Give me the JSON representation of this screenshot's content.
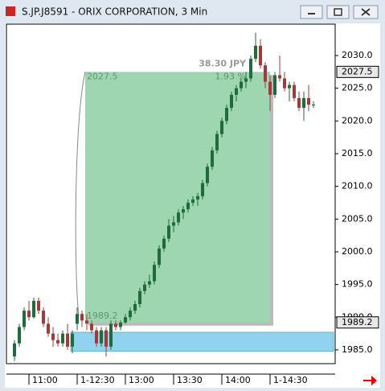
{
  "window": {
    "title": "S.JP.J8591 - ORIX CORPORATION, 3 Min"
  },
  "chart_data": {
    "type": "candlestick",
    "ohlc": [
      [
        1984,
        1986.5,
        1983.3,
        1986
      ],
      [
        1986,
        1989,
        1985.5,
        1988.5
      ],
      [
        1988.5,
        1991.5,
        1988,
        1991
      ],
      [
        1991,
        1992.5,
        1989.5,
        1990
      ],
      [
        1990,
        1993,
        1989.8,
        1992.5
      ],
      [
        1992.5,
        1993,
        1990.5,
        1991
      ],
      [
        1991,
        1991.5,
        1988.5,
        1989
      ],
      [
        1989,
        1990,
        1987,
        1987.5
      ],
      [
        1987.5,
        1988.5,
        1985.5,
        1986.5
      ],
      [
        1986.5,
        1987.5,
        1985.5,
        1986
      ],
      [
        1986,
        1988,
        1985.5,
        1987.5
      ],
      [
        1987.5,
        1989,
        1985,
        1985.5
      ],
      [
        1985.5,
        1988,
        1984.5,
        1987.5
      ],
      [
        1989,
        1991.5,
        1988,
        1990.5
      ],
      [
        1990.5,
        1991,
        1988.5,
        1989.5
      ],
      [
        1989.5,
        1990.5,
        1988,
        1989
      ],
      [
        1989,
        1989.5,
        1987.5,
        1988
      ],
      [
        1988,
        1988.5,
        1985.5,
        1986
      ],
      [
        1986,
        1988.5,
        1985.5,
        1988
      ],
      [
        1988,
        1988.5,
        1984,
        1985.5
      ],
      [
        1985.5,
        1989.5,
        1985,
        1989
      ],
      [
        1989,
        1989.5,
        1988,
        1988.5
      ],
      [
        1988.5,
        1989.5,
        1988,
        1989.2
      ],
      [
        1989.2,
        1990.5,
        1989,
        1990
      ],
      [
        1990,
        1991.5,
        1989.5,
        1991
      ],
      [
        1991,
        1992.5,
        1990.5,
        1992
      ],
      [
        1992,
        1994.5,
        1991.5,
        1994
      ],
      [
        1994,
        1995.5,
        1993.5,
        1995
      ],
      [
        1995,
        1996.5,
        1994.5,
        1995.5
      ],
      [
        1995.5,
        1998.5,
        1995,
        1998
      ],
      [
        1998,
        2001,
        1997.5,
        2000.5
      ],
      [
        2000.5,
        2002.5,
        2000,
        2002
      ],
      [
        2002,
        2005,
        2001.5,
        2004
      ],
      [
        2004,
        2005.5,
        2003,
        2004.5
      ],
      [
        2004.5,
        2006.5,
        2004,
        2006
      ],
      [
        2006,
        2007,
        2005,
        2006.5
      ],
      [
        2006.5,
        2008,
        2006,
        2007.5
      ],
      [
        2007.5,
        2008.5,
        2007,
        2008
      ],
      [
        2008,
        2009,
        2007,
        2008.5
      ],
      [
        2008.5,
        2011,
        2008,
        2010.5
      ],
      [
        2010.5,
        2013.5,
        2010,
        2013
      ],
      [
        2013,
        2016,
        2012.5,
        2015.5
      ],
      [
        2015.5,
        2018.5,
        2015,
        2018
      ],
      [
        2018,
        2020.5,
        2017.5,
        2020
      ],
      [
        2020,
        2022.5,
        2019.5,
        2022
      ],
      [
        2022,
        2024.5,
        2021.5,
        2024
      ],
      [
        2024,
        2025.5,
        2023,
        2025
      ],
      [
        2025,
        2026.5,
        2024.5,
        2026
      ],
      [
        2026,
        2027.5,
        2025,
        2026.5
      ],
      [
        2026.5,
        2030,
        2026,
        2029.5
      ],
      [
        2029.5,
        2033.5,
        2029,
        2031.5
      ],
      [
        2031.5,
        2032.5,
        2028,
        2028.5
      ],
      [
        2028.5,
        2029,
        2025,
        2026
      ],
      [
        2026,
        2027,
        2021.5,
        2024
      ],
      [
        2024,
        2027.5,
        2023.5,
        2027
      ],
      [
        2027,
        2030,
        2026,
        2026.5
      ],
      [
        2026.5,
        2027.5,
        2024.5,
        2025
      ],
      [
        2025,
        2026,
        2023,
        2025.5
      ],
      [
        2025.5,
        2026,
        2023,
        2023.5
      ],
      [
        2023.5,
        2024.5,
        2021.5,
        2022
      ],
      [
        2022,
        2024.5,
        2020,
        2023.5
      ],
      [
        2023.5,
        2025.5,
        2021.5,
        2022.5
      ],
      [
        2022.5,
        2023,
        2022,
        2022.5
      ]
    ],
    "up_color": "#1f6b3a",
    "down_color": "#a33a3a",
    "xlim": [
      -1.67,
      66.5
    ],
    "xticks": [
      {
        "value": 3,
        "label": "11:00"
      },
      {
        "value": 13,
        "label": "1-12:30"
      },
      {
        "value": 23,
        "label": "13:00"
      },
      {
        "value": 33,
        "label": "13:30"
      },
      {
        "value": 43,
        "label": "14:00"
      },
      {
        "value": 53,
        "label": "1-14:30"
      }
    ],
    "ylim": [
      1982.9,
      2034.8
    ],
    "yticks": [
      {
        "value": 1985,
        "label": "1985.0"
      },
      {
        "value": 1990,
        "label": "1990.0"
      },
      {
        "value": 1995,
        "label": "1995.0"
      },
      {
        "value": 2000,
        "label": "2000.0"
      },
      {
        "value": 2005,
        "label": "2005.0"
      },
      {
        "value": 2010,
        "label": "2010.0"
      },
      {
        "value": 2015,
        "label": "2015.0"
      },
      {
        "value": 2020,
        "label": "2020.0"
      },
      {
        "value": 2025,
        "label": "2025.0"
      },
      {
        "value": 2030,
        "label": "2030.0"
      }
    ],
    "ruler": {
      "start": 15,
      "end": 53,
      "top": 2027.5,
      "bottom": 1989.2,
      "change_label": "38.30 JPY",
      "percent_label": "1.93 %",
      "color": "#9dd6b1"
    },
    "zone": {
      "start": 12,
      "low": 1984.8,
      "high": 1987.7,
      "color": "#91d2f0"
    }
  }
}
